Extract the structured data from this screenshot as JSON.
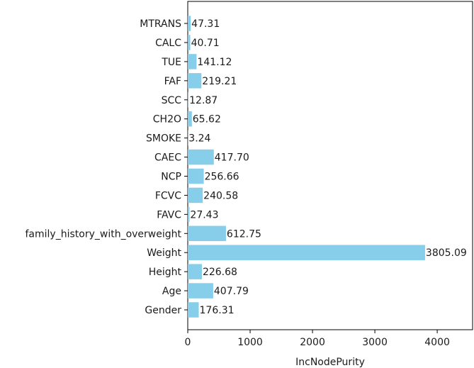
{
  "chart_data": {
    "type": "bar",
    "orientation": "horizontal",
    "title": "",
    "xlabel": "IncNodePurity",
    "ylabel": "",
    "xlim": [
      0,
      4567
    ],
    "xticks": [
      0,
      1000,
      2000,
      3000,
      4000
    ],
    "grid": false,
    "bar_color": "#87CEEB",
    "categories": [
      "Gender",
      "Age",
      "Height",
      "Weight",
      "family_history_with_overweight",
      "FAVC",
      "FCVC",
      "NCP",
      "CAEC",
      "SMOKE",
      "CH2O",
      "SCC",
      "FAF",
      "TUE",
      "CALC",
      "MTRANS"
    ],
    "values": [
      176.31,
      407.79,
      226.68,
      3805.09,
      612.75,
      27.43,
      240.58,
      256.66,
      417.7,
      3.24,
      65.62,
      12.87,
      219.21,
      141.12,
      40.71,
      47.31
    ],
    "value_labels": [
      "176.31",
      "407.79",
      "226.68",
      "3805.09",
      "612.75",
      "27.43",
      "240.58",
      "256.66",
      "417.70",
      "3.24",
      "65.62",
      "12.87",
      "219.21",
      "141.12",
      "40.71",
      "47.31"
    ]
  }
}
